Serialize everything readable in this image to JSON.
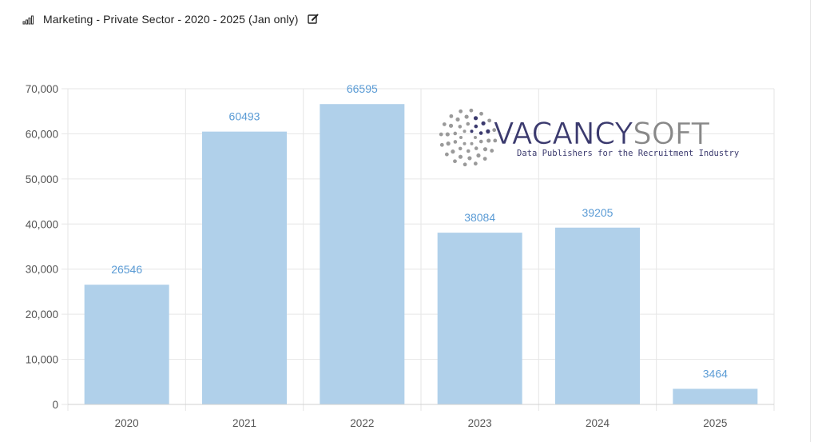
{
  "header": {
    "title": "Marketing - Private Sector - 2020 - 2025 (Jan only)",
    "chart_icon": "bar-chart-icon",
    "edit_icon": "edit-icon"
  },
  "watermark": {
    "brand_part1": "VACANCY",
    "brand_part2": "SOFT",
    "tagline": "Data Publishers for the Recruitment Industry",
    "color_primary": "#3b3a6e",
    "color_secondary": "#888888"
  },
  "chart_data": {
    "type": "bar",
    "categories": [
      "2020",
      "2021",
      "2022",
      "2023",
      "2024",
      "2025"
    ],
    "values": [
      26546,
      60493,
      66595,
      38084,
      39205,
      3464
    ],
    "data_labels": [
      "26546",
      "60493",
      "66595",
      "38084",
      "39205",
      "3464"
    ],
    "y_ticks": [
      0,
      10000,
      20000,
      30000,
      40000,
      50000,
      60000,
      70000
    ],
    "y_tick_labels": [
      "0",
      "10,000",
      "20,000",
      "30,000",
      "40,000",
      "50,000",
      "60,000",
      "70,000"
    ],
    "ylim": [
      0,
      70000
    ],
    "grid": true,
    "legend": "none",
    "bar_color": "#b0d0ea",
    "label_color": "#5a9bd5"
  }
}
